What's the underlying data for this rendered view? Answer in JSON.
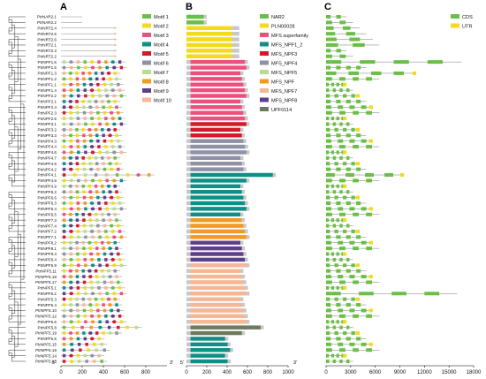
{
  "figure": {
    "panels": [
      {
        "letter": "A"
      },
      {
        "letter": "B"
      },
      {
        "letter": "C"
      }
    ],
    "end_labels": {
      "five_prime": "5'",
      "three_prime": "3'"
    }
  },
  "genes": [
    "PtrNAR2.1",
    "PtrNAR2.2",
    "PtrNRT2.4",
    "PtrNRT2.5",
    "PtrNRT2.6",
    "PtrNRT2.1",
    "PtrNRT2.3",
    "PtrNRT2.2",
    "PtrNPF1.6",
    "PtrNPF1.5",
    "PtrNPF1.3",
    "PtrNPF1.2",
    "PtrNPF1.1",
    "PtrNPF1.4",
    "PtrNPF2.2",
    "PtrNPF2.1",
    "PtrNPF2.4",
    "PtrNPF2.3",
    "PtrNPF2.5",
    "PtrNPF3.1",
    "PtrNPF3.2",
    "PtrNPF3.3",
    "PtrNPF4.3",
    "PtrNPF4.4",
    "PtrNPF4.6",
    "PtrNPF4.7",
    "PtrNPF4.5",
    "PtrNPF4.2",
    "PtrNPF4.1",
    "PtrNPF4.8",
    "PtrNPF4.9",
    "PtrNPF6.2",
    "PtrNPF6.6",
    "PtrNPF6.3",
    "PtrNPF6.4",
    "PtrNPF6.5",
    "PtrNPF7.3",
    "PtrNPF7.4",
    "PtrNPF7.2",
    "PtrNPF7.1",
    "PtrNPF8.2",
    "PtrNPF8.1",
    "PtrNPF8.3",
    "PtrNPF8.4",
    "PtrNPF5.9",
    "PtrNPF5.11",
    "PtrNPF5.18",
    "PtrNPF5.17",
    "PtrNPF5.1",
    "PtrNPF5.2",
    "PtrNPF5.3",
    "PtrNPF5.4",
    "PtrNPF5.10",
    "PtrNPF5.12",
    "PtrNPF5.6",
    "PtrNPF5.8",
    "PtrNPF5.19",
    "PtrNPF5.5",
    "PtrNPF5.15",
    "PtrNPF5.16",
    "PtrNPF5.14",
    "PtrNPF5.13"
  ],
  "motif_legend": [
    {
      "label": "Motif 1",
      "color": "#6abf45"
    },
    {
      "label": "Motif 2",
      "color": "#f3da1c"
    },
    {
      "label": "Motif 3",
      "color": "#ee4f7d"
    },
    {
      "label": "Motif 4",
      "color": "#0f8f86"
    },
    {
      "label": "Motif 5",
      "color": "#d4192a"
    },
    {
      "label": "Motif 6",
      "color": "#8f92a6"
    },
    {
      "label": "Motif 7",
      "color": "#b7df8a"
    },
    {
      "label": "Motif 8",
      "color": "#f29b1e"
    },
    {
      "label": "Motif 9",
      "color": "#5d3f8e"
    },
    {
      "label": "Motif 10",
      "color": "#f6b795"
    }
  ],
  "domain_legend": [
    {
      "label": "NAR2",
      "color": "#6abf45"
    },
    {
      "label": "PLN00028",
      "color": "#f3da1c"
    },
    {
      "label": "MFS superfamily",
      "color": "#ee4f7d"
    },
    {
      "label": "MFS_NPF1_2",
      "color": "#0f8f86"
    },
    {
      "label": "MFS_NPF3",
      "color": "#d4192a"
    },
    {
      "label": "MFS_NPF4",
      "color": "#8f92a6"
    },
    {
      "label": "MFS_NPF5",
      "color": "#b7df8a"
    },
    {
      "label": "MFS_NPF",
      "color": "#f29b1e"
    },
    {
      "label": "MFS_NPF7",
      "color": "#f6b795"
    },
    {
      "label": "MFS_NPF8",
      "color": "#5d3f8e"
    },
    {
      "label": "UPF0114",
      "color": "#6c7a5e"
    }
  ],
  "structure_legend": [
    {
      "label": "CDS",
      "color": "#6abf45"
    },
    {
      "label": "UTR",
      "color": "#f3da1c"
    }
  ],
  "axes": {
    "motif": {
      "ticks": [
        "0",
        "200",
        "400",
        "600",
        "800"
      ],
      "max": 1000
    },
    "domain": {
      "ticks": [
        "0",
        "200",
        "400",
        "600",
        "800",
        "1000"
      ],
      "max": 1000
    },
    "structure": {
      "ticks": [
        "0",
        "3000",
        "6000",
        "9000",
        "12000",
        "15000",
        "18000"
      ],
      "max": 18000
    }
  }
}
